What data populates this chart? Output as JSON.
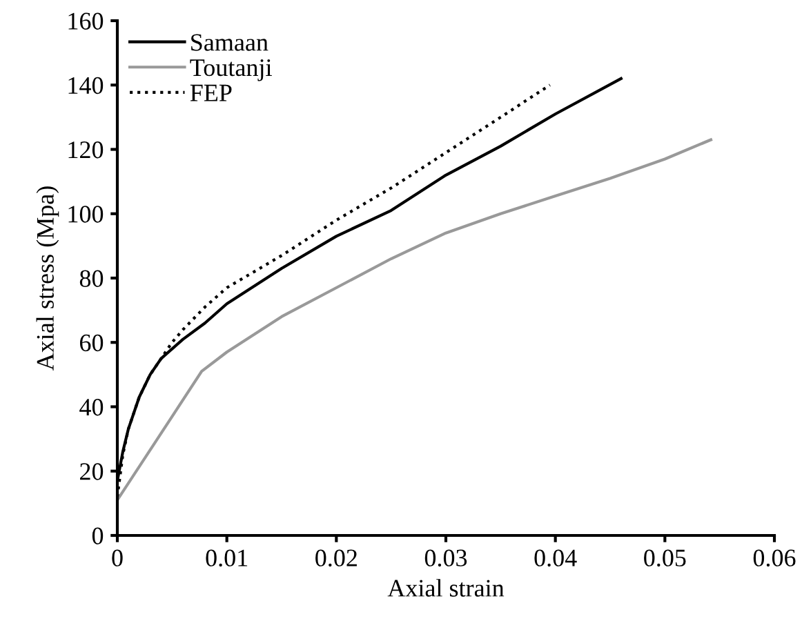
{
  "chart_data": {
    "type": "line",
    "xlabel": "Axial strain",
    "ylabel": "Axial stress (Mpa)",
    "xlim": [
      0,
      0.06
    ],
    "xticks": [
      0,
      0.01,
      0.02,
      0.03,
      0.04,
      0.05,
      0.06
    ],
    "ylim": [
      0,
      160
    ],
    "yticks": [
      0,
      20,
      40,
      60,
      80,
      100,
      120,
      140,
      160
    ],
    "grid": false,
    "legend": "top left",
    "marker": "none",
    "series": [
      {
        "name": "Samaan",
        "color": "#000000",
        "line_style": "solid",
        "x": [
          0,
          0.0005,
          0.001,
          0.002,
          0.003,
          0.004,
          0.005,
          0.006,
          0.008,
          0.01,
          0.015,
          0.02,
          0.025,
          0.03,
          0.035,
          0.04,
          0.046
        ],
        "values": [
          17,
          26,
          33,
          43,
          50,
          55,
          58,
          61,
          66,
          72,
          83,
          93,
          101,
          112,
          121,
          131,
          142
        ]
      },
      {
        "name": "Toutanji",
        "color": "#999999",
        "line_style": "solid",
        "x": [
          0,
          0.0077,
          0.01,
          0.015,
          0.02,
          0.025,
          0.03,
          0.035,
          0.04,
          0.045,
          0.05,
          0.0542
        ],
        "values": [
          11,
          51,
          57,
          68,
          77,
          86,
          94,
          100,
          105.5,
          111,
          117,
          123
        ]
      },
      {
        "name": "FEP",
        "color": "#000000",
        "line_style": "dotted",
        "x": [
          0,
          0.0005,
          0.001,
          0.002,
          0.003,
          0.004,
          0.005,
          0.006,
          0.008,
          0.01,
          0.015,
          0.02,
          0.025,
          0.03,
          0.035,
          0.0395
        ],
        "values": [
          12,
          25,
          33,
          43,
          50,
          55,
          60,
          64,
          71,
          77,
          87,
          98,
          108,
          119,
          130,
          140
        ]
      }
    ]
  }
}
